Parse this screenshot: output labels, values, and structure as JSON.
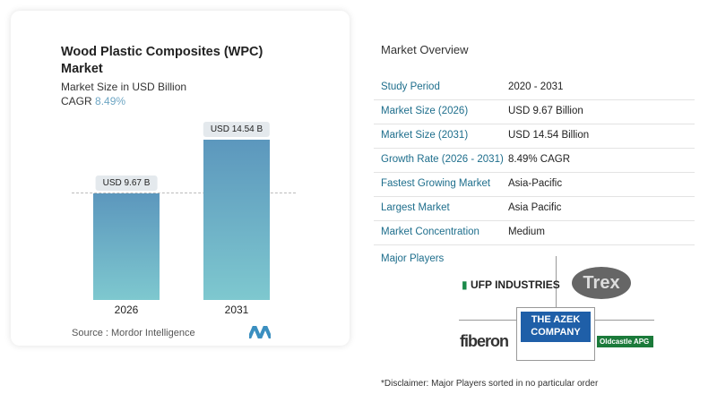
{
  "chart_data": {
    "type": "bar",
    "title": "Wood Plastic Composites (WPC) Market",
    "subtitle": "Market Size in USD Billion",
    "cagr_label": "CAGR",
    "cagr_value": "8.49%",
    "categories": [
      "2026",
      "2031"
    ],
    "values": [
      9.67,
      14.54
    ],
    "data_labels": [
      "USD 9.67 B",
      "USD 14.54 B"
    ],
    "colors": {
      "bar_top": "#5c97bd",
      "bar_bottom": "#7ec8cf"
    },
    "source": "Source :  Mordor Intelligence"
  },
  "overview": {
    "title": "Market Overview",
    "rows": [
      {
        "label": "Study Period",
        "value": "2020 - 2031"
      },
      {
        "label": "Market Size (2026)",
        "value": "USD 9.67 Billion"
      },
      {
        "label": "Market Size (2031)",
        "value": "USD 14.54 Billion"
      },
      {
        "label": "Growth Rate (2026 - 2031)",
        "value": "8.49% CAGR"
      },
      {
        "label": "Fastest Growing Market",
        "value": "Asia-Pacific"
      },
      {
        "label": "Largest Market",
        "value": "Asia Pacific"
      },
      {
        "label": "Market Concentration",
        "value": "Medium"
      }
    ],
    "players_title": "Major Players",
    "players": [
      "UFP INDUSTRIES",
      "Trex",
      "fiberon",
      "THE AZEK COMPANY",
      "Oldcastle APG"
    ],
    "disclaimer": "*Disclaimer: Major Players sorted in no particular order"
  }
}
